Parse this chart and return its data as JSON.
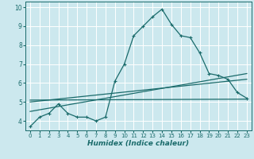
{
  "xlabel": "Humidex (Indice chaleur)",
  "ylabel": "",
  "background_color": "#cce8ee",
  "grid_color": "#ffffff",
  "line_color": "#1a6b6b",
  "xlim": [
    -0.5,
    23.5
  ],
  "ylim": [
    3.5,
    10.3
  ],
  "xticks": [
    0,
    1,
    2,
    3,
    4,
    5,
    6,
    7,
    8,
    9,
    10,
    11,
    12,
    13,
    14,
    15,
    16,
    17,
    18,
    19,
    20,
    21,
    22,
    23
  ],
  "yticks": [
    4,
    5,
    6,
    7,
    8,
    9,
    10
  ],
  "curve1_x": [
    0,
    1,
    2,
    3,
    4,
    5,
    6,
    7,
    8,
    9,
    10,
    11,
    12,
    13,
    14,
    15,
    16,
    17,
    18,
    19,
    20,
    21,
    22,
    23
  ],
  "curve1_y": [
    3.7,
    4.2,
    4.4,
    4.9,
    4.4,
    4.2,
    4.2,
    4.0,
    4.2,
    6.1,
    7.0,
    8.5,
    9.0,
    9.5,
    9.9,
    9.1,
    8.5,
    8.4,
    7.6,
    6.5,
    6.4,
    6.2,
    5.5,
    5.2
  ],
  "line2_x": [
    0,
    23
  ],
  "line2_y": [
    4.5,
    6.5
  ],
  "line3_x": [
    0,
    23
  ],
  "line3_y": [
    5.0,
    6.2
  ],
  "line4_x": [
    0,
    23
  ],
  "line4_y": [
    5.1,
    5.15
  ]
}
